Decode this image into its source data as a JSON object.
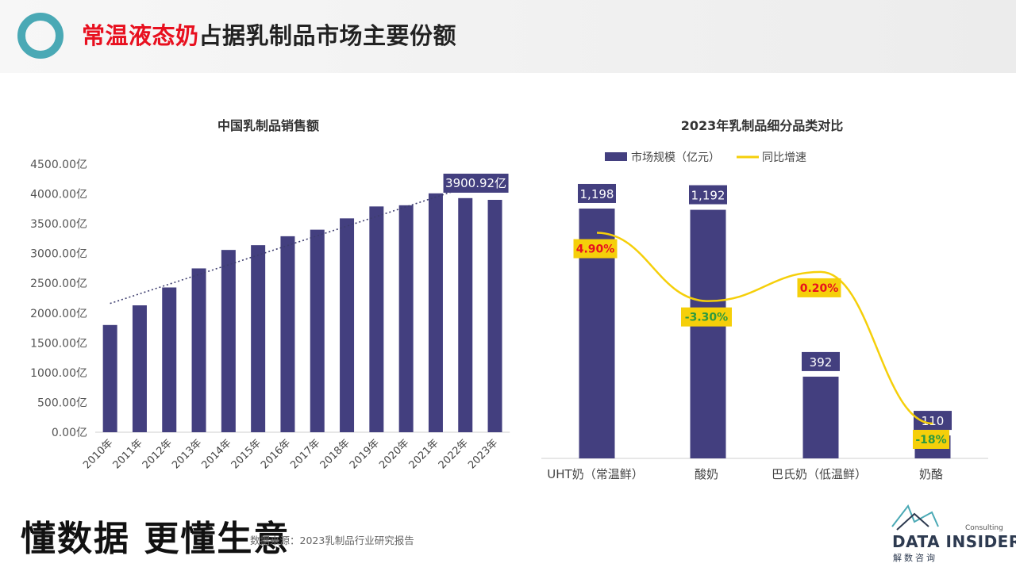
{
  "header": {
    "title_highlight": "常温液态奶",
    "title_rest": "占据乳制品市场主要份额"
  },
  "footer": {
    "slogan": "懂数据 更懂生意",
    "source": "数据来源：2023乳制品行业研究报告",
    "logo_consulting": "Consulting",
    "logo_brand": "DATA INSIDER",
    "logo_cn": "解数咨询"
  },
  "colors": {
    "bar": "#433f7f",
    "line": "#f5cf0a",
    "label_bg": "#f5cf0a",
    "positive": "#e8101f",
    "negative": "#2e9a3e",
    "accent_ring": "#4aa9b5"
  },
  "chart_data": [
    {
      "type": "bar",
      "title": "中国乳制品销售额",
      "categories": [
        "2010年",
        "2011年",
        "2012年",
        "2013年",
        "2014年",
        "2015年",
        "2016年",
        "2017年",
        "2018年",
        "2019年",
        "2020年",
        "2021年",
        "2022年",
        "2023年"
      ],
      "values": [
        1800,
        2130,
        2430,
        2750,
        3060,
        3140,
        3290,
        3400,
        3590,
        3790,
        3810,
        4010,
        3930,
        3900.92
      ],
      "value_label": {
        "index": 13,
        "text": "3900.92亿"
      },
      "yticks": [
        "0.00亿",
        "500.00亿",
        "1000.00亿",
        "1500.00亿",
        "2000.00亿",
        "2500.00亿",
        "3000.00亿",
        "3500.00亿",
        "4000.00亿",
        "4500.00亿"
      ],
      "ylim": [
        0,
        4500
      ],
      "trendline": true,
      "grid": false
    },
    {
      "type": "bar+line",
      "title": "2023年乳制品细分品类对比",
      "legend": [
        "市场规模（亿元）",
        "同比增速"
      ],
      "legend_position": "top-center",
      "categories": [
        "UHT奶（常温鲜）",
        "酸奶",
        "巴氏奶（低温鲜）",
        "奶酪"
      ],
      "series": [
        {
          "name": "市场规模（亿元）",
          "values": [
            1198,
            1192,
            392,
            110
          ],
          "labels": [
            "1,198",
            "1,192",
            "392",
            "110"
          ]
        },
        {
          "name": "同比增速",
          "values": [
            4.9,
            -3.3,
            0.2,
            -18
          ],
          "labels": [
            "4.90%",
            "-3.30%",
            "0.20%",
            "-18%"
          ]
        }
      ],
      "ylim_bar": [
        0,
        1350
      ]
    }
  ]
}
